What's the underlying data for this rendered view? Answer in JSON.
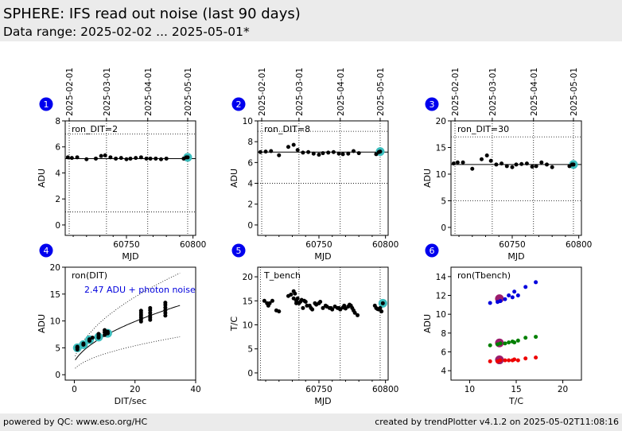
{
  "header": {
    "title": "SPHERE: IFS read out noise (last 90 days)",
    "subtitle": "Data range: 2025-02-02 ... 2025-05-01*"
  },
  "footer": {
    "left": "powered by QC: www.eso.org/HC",
    "right": "created by trendPlotter v4.1.2 on 2025-05-02T11:08:16"
  },
  "colors": {
    "badge": "#0000ee",
    "current_marker": "#3cbebe",
    "fit_blue": "#0000dd",
    "green": "#008000",
    "red": "#ee0000",
    "purple_ring": "#9b1c6c"
  },
  "date_axis": {
    "labels": [
      "2025-02-01",
      "2025-03-01",
      "2025-04-01",
      "2025-05-01"
    ],
    "mjd": [
      60707,
      60735,
      60766,
      60796
    ]
  },
  "chart_data": [
    {
      "panel": "1",
      "type": "scatter",
      "label": "ron_DIT=2",
      "xlabel": "MJD",
      "ylabel": "ADU",
      "xlim": [
        60704,
        60802
      ],
      "ylim": [
        -0.8,
        8
      ],
      "yticks": [
        0,
        2,
        4,
        6,
        8
      ],
      "xticks": [
        60750,
        60800
      ],
      "ref_line": 5.1,
      "limit_lines": [
        1.0,
        7.0
      ],
      "x": [
        60706,
        60709,
        60713,
        60720,
        60727,
        60731,
        60734,
        60738,
        60742,
        60746,
        60750,
        60753,
        60757,
        60761,
        60765,
        60768,
        60772,
        60776,
        60780,
        60793,
        60795
      ],
      "y": [
        5.2,
        5.15,
        5.2,
        5.05,
        5.1,
        5.3,
        5.35,
        5.2,
        5.1,
        5.15,
        5.05,
        5.1,
        5.15,
        5.2,
        5.1,
        5.1,
        5.1,
        5.05,
        5.1,
        5.1,
        5.2
      ],
      "current": {
        "x": 60796,
        "y": 5.2
      }
    },
    {
      "panel": "2",
      "type": "scatter",
      "label": "ron_DIT=8",
      "xlabel": "MJD",
      "ylabel": "ADU",
      "xlim": [
        60704,
        60802
      ],
      "ylim": [
        -1,
        10
      ],
      "yticks": [
        0,
        2,
        4,
        6,
        8,
        10
      ],
      "xticks": [
        60750,
        60800
      ],
      "ref_line": 7.0,
      "limit_lines": [
        4.0,
        9.0
      ],
      "x": [
        60706,
        60710,
        60714,
        60720,
        60727,
        60731,
        60734,
        60738,
        60742,
        60746,
        60750,
        60753,
        60757,
        60761,
        60765,
        60768,
        60772,
        60776,
        60780,
        60793,
        60795
      ],
      "y": [
        7.0,
        7.05,
        7.1,
        6.7,
        7.5,
        7.7,
        7.2,
        6.95,
        7.0,
        6.85,
        6.75,
        6.9,
        6.95,
        7.0,
        6.85,
        6.8,
        6.85,
        7.1,
        6.9,
        6.8,
        7.0
      ],
      "current": {
        "x": 60796,
        "y": 7.05
      }
    },
    {
      "panel": "3",
      "type": "scatter",
      "label": "ron_DIT=30",
      "xlabel": "MJD",
      "ylabel": "ADU",
      "xlim": [
        60704,
        60802
      ],
      "ylim": [
        -1.5,
        20
      ],
      "yticks": [
        0,
        5,
        10,
        15,
        20
      ],
      "xticks": [
        60750,
        60800
      ],
      "ref_line": 11.8,
      "limit_lines": [
        5.0,
        17.0
      ],
      "x": [
        60706,
        60709,
        60713,
        60720,
        60727,
        60731,
        60734,
        60738,
        60742,
        60746,
        60750,
        60753,
        60757,
        60761,
        60765,
        60768,
        60772,
        60776,
        60780,
        60793,
        60795
      ],
      "y": [
        12.0,
        12.2,
        12.2,
        11.0,
        12.8,
        13.5,
        12.5,
        11.8,
        12.0,
        11.5,
        11.3,
        11.8,
        11.9,
        12.0,
        11.4,
        11.5,
        12.2,
        11.8,
        11.3,
        11.5,
        11.8
      ],
      "current": {
        "x": 60796,
        "y": 11.8
      }
    },
    {
      "panel": "4",
      "type": "scatter",
      "label": "ron(DIT)",
      "annotation": "2.47 ADU + photon noise",
      "xlabel": "DIT/sec",
      "ylabel": "ADU",
      "xlim": [
        -3,
        40
      ],
      "ylim": [
        -1,
        20
      ],
      "yticks": [
        0,
        5,
        10,
        15,
        20
      ],
      "xticks": [
        0,
        20,
        40
      ],
      "points": [
        [
          1,
          4.7
        ],
        [
          1,
          5.0
        ],
        [
          1,
          5.2
        ],
        [
          3,
          5.6
        ],
        [
          3,
          5.8
        ],
        [
          5,
          6.3
        ],
        [
          5,
          6.6
        ],
        [
          6,
          6.9
        ],
        [
          8,
          6.9
        ],
        [
          8,
          7.3
        ],
        [
          8,
          7.6
        ],
        [
          10,
          7.4
        ],
        [
          10,
          7.9
        ],
        [
          10,
          8.3
        ],
        [
          11,
          7.7
        ],
        [
          11,
          8.0
        ],
        [
          22,
          9.9
        ],
        [
          22,
          10.3
        ],
        [
          22,
          10.7
        ],
        [
          22,
          11.1
        ],
        [
          22,
          11.5
        ],
        [
          22,
          11.9
        ],
        [
          25,
          10.2
        ],
        [
          25,
          10.6
        ],
        [
          25,
          11.0
        ],
        [
          25,
          11.5
        ],
        [
          25,
          12.0
        ],
        [
          25,
          12.4
        ],
        [
          30,
          11.0
        ],
        [
          30,
          11.5
        ],
        [
          30,
          12.0
        ],
        [
          30,
          12.5
        ],
        [
          30,
          13.0
        ],
        [
          30,
          13.4
        ]
      ],
      "current_points": [
        [
          1,
          5.0
        ],
        [
          3,
          5.6
        ],
        [
          5,
          6.5
        ],
        [
          8,
          7.0
        ],
        [
          11,
          7.7
        ]
      ]
    },
    {
      "panel": "5",
      "type": "scatter",
      "label": "T_bench",
      "xlabel": "MJD",
      "ylabel": "T/C",
      "xlim": [
        60704,
        60802
      ],
      "ylim": [
        -1.5,
        22
      ],
      "yticks": [
        0,
        5,
        10,
        15,
        20
      ],
      "xticks": [
        60750,
        60800
      ],
      "x": [
        60709,
        60711,
        60712,
        60713,
        60715,
        60718,
        60720,
        60727,
        60729,
        60731,
        60731,
        60732,
        60733,
        60733,
        60734,
        60735,
        60736,
        60737,
        60738,
        60739,
        60740,
        60741,
        60743,
        60744,
        60745,
        60747,
        60748,
        60750,
        60751,
        60753,
        60755,
        60756,
        60758,
        60759,
        60760,
        60762,
        60764,
        60765,
        60766,
        60768,
        60769,
        60770,
        60772,
        60773,
        60774,
        60775,
        60776,
        60777,
        60779,
        60792,
        60793,
        60794,
        60795,
        60796,
        60797
      ],
      "y": [
        15.0,
        14.5,
        14.0,
        14.5,
        15.0,
        13.0,
        12.8,
        16.0,
        16.3,
        17.0,
        15.5,
        16.5,
        15.0,
        14.5,
        15.5,
        14.5,
        14.8,
        15.2,
        13.5,
        15.0,
        14.8,
        14.0,
        14.0,
        13.5,
        13.2,
        14.5,
        14.2,
        14.5,
        14.8,
        13.5,
        14.0,
        13.8,
        13.5,
        13.5,
        13.2,
        13.8,
        13.5,
        13.5,
        13.2,
        13.6,
        14.0,
        13.4,
        13.8,
        14.2,
        14.0,
        13.5,
        13.0,
        12.5,
        12.0,
        14.0,
        13.5,
        13.3,
        13.2,
        13.5,
        12.8
      ],
      "current": {
        "x": 60798,
        "y": 14.5
      },
      "vlines": [
        60706,
        60735,
        60766,
        60796
      ]
    },
    {
      "panel": "6",
      "type": "scatter",
      "label": "ron(Tbench)",
      "xlabel": "T/C",
      "ylabel": "ADU",
      "xlim": [
        8,
        22
      ],
      "ylim": [
        3,
        15
      ],
      "yticks": [
        4,
        6,
        8,
        10,
        12,
        14
      ],
      "xticks": [
        10,
        15,
        20
      ],
      "series": [
        {
          "color": "#0000dd",
          "points": [
            [
              12.2,
              11.2
            ],
            [
              13.0,
              11.3
            ],
            [
              13.3,
              11.4
            ],
            [
              13.8,
              11.6
            ],
            [
              14.2,
              12.0
            ],
            [
              14.6,
              11.8
            ],
            [
              14.8,
              12.4
            ],
            [
              15.2,
              12.0
            ],
            [
              16.0,
              12.9
            ],
            [
              17.1,
              13.4
            ]
          ]
        },
        {
          "color": "#008000",
          "points": [
            [
              12.2,
              6.7
            ],
            [
              13.0,
              6.8
            ],
            [
              13.3,
              6.9
            ],
            [
              13.8,
              6.9
            ],
            [
              14.2,
              7.0
            ],
            [
              14.6,
              7.1
            ],
            [
              14.8,
              7.0
            ],
            [
              15.2,
              7.2
            ],
            [
              16.0,
              7.5
            ],
            [
              17.1,
              7.6
            ]
          ]
        },
        {
          "color": "#ee0000",
          "points": [
            [
              12.2,
              5.0
            ],
            [
              13.0,
              5.0
            ],
            [
              13.3,
              5.1
            ],
            [
              13.8,
              5.1
            ],
            [
              14.2,
              5.1
            ],
            [
              14.6,
              5.1
            ],
            [
              14.8,
              5.2
            ],
            [
              15.2,
              5.1
            ],
            [
              16.0,
              5.3
            ],
            [
              17.1,
              5.4
            ]
          ]
        }
      ],
      "current_points": [
        [
          13.2,
          11.65
        ],
        [
          13.2,
          6.95
        ],
        [
          13.2,
          5.15
        ]
      ]
    }
  ]
}
